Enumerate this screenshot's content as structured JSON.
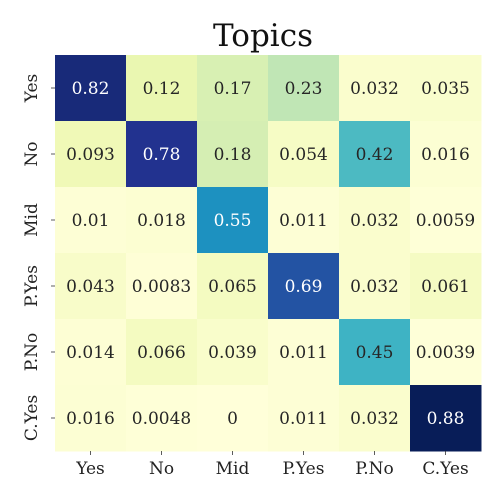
{
  "chart_data": {
    "type": "heatmap",
    "title": "Topics",
    "xlabel": "",
    "ylabel": "",
    "x_categories": [
      "Yes",
      "No",
      "Mid",
      "P.Yes",
      "P.No",
      "C.Yes"
    ],
    "y_categories": [
      "Yes",
      "No",
      "Mid",
      "P.Yes",
      "P.No",
      "C.Yes"
    ],
    "values": [
      [
        0.82,
        0.12,
        0.17,
        0.23,
        0.032,
        0.035
      ],
      [
        0.093,
        0.78,
        0.18,
        0.054,
        0.42,
        0.016
      ],
      [
        0.01,
        0.018,
        0.55,
        0.011,
        0.032,
        0.0059
      ],
      [
        0.043,
        0.0083,
        0.065,
        0.69,
        0.032,
        0.061
      ],
      [
        0.014,
        0.066,
        0.039,
        0.011,
        0.45,
        0.0039
      ],
      [
        0.016,
        0.0048,
        0,
        0.011,
        0.032,
        0.88
      ]
    ],
    "labels": [
      [
        "0.82",
        "0.12",
        "0.17",
        "0.23",
        "0.032",
        "0.035"
      ],
      [
        "0.093",
        "0.78",
        "0.18",
        "0.054",
        "0.42",
        "0.016"
      ],
      [
        "0.01",
        "0.018",
        "0.55",
        "0.011",
        "0.032",
        "0.0059"
      ],
      [
        "0.043",
        "0.0083",
        "0.065",
        "0.69",
        "0.032",
        "0.061"
      ],
      [
        "0.014",
        "0.066",
        "0.039",
        "0.011",
        "0.45",
        "0.0039"
      ],
      [
        "0.016",
        "0.0048",
        "0",
        "0.011",
        "0.032",
        "0.88"
      ]
    ],
    "colormap": "YlGnBu",
    "vmin": 0,
    "vmax": 0.88,
    "colorbar": false,
    "grid": false
  }
}
